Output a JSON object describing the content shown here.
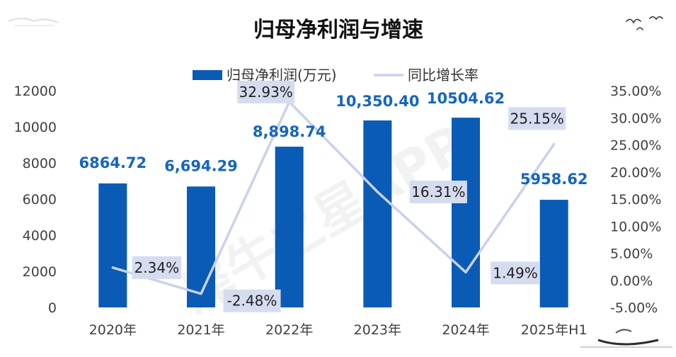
{
  "chart_data": {
    "type": "bar",
    "title": "归母净利润与增速",
    "categories": [
      "2020年",
      "2021年",
      "2022年",
      "2023年",
      "2024年",
      "2025年H1"
    ],
    "series": [
      {
        "name": "归母净利润(万元)",
        "type": "bar",
        "axis": "left",
        "values": [
          6864.72,
          6694.29,
          8898.74,
          10350.4,
          10504.62,
          5958.62
        ],
        "labels": [
          "6864.72",
          "6,694.29",
          "8,898.74",
          "10,350.40",
          "10504.62",
          "5958.62"
        ],
        "color": "#0a5bb5"
      },
      {
        "name": "同比增长率",
        "type": "line",
        "axis": "right",
        "values": [
          2.34,
          -2.48,
          32.93,
          16.31,
          1.49,
          25.15
        ],
        "labels": [
          "2.34%",
          "-2.48%",
          "32.93%",
          "16.31%",
          "1.49%",
          "25.15%"
        ],
        "color": "#c9d1ec"
      }
    ],
    "left_axis": {
      "ylim": [
        0,
        12000
      ],
      "ticks": [
        "0",
        "2000",
        "4000",
        "6000",
        "8000",
        "10000",
        "12000"
      ]
    },
    "right_axis": {
      "ylim": [
        -5,
        35
      ],
      "ticks": [
        "-5.00%",
        "0.00%",
        "5.00%",
        "10.00%",
        "15.00%",
        "20.00%",
        "25.00%",
        "30.00%",
        "35.00%"
      ]
    },
    "legend_position": "top",
    "grid": false
  },
  "watermark": "犀牛之星APP"
}
